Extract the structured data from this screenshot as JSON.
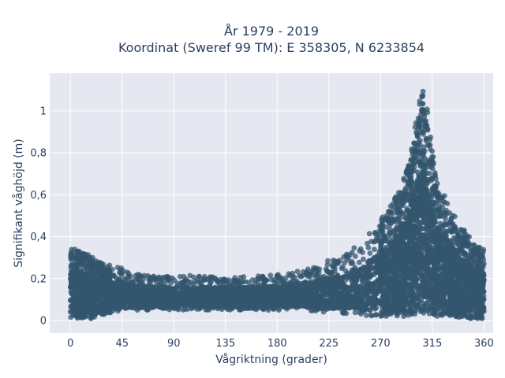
{
  "chart_data": {
    "type": "scatter",
    "title_lines": [
      "År 1979 - 2019",
      "Koordinat (Sweref 99 TM): E 358305, N 6233854"
    ],
    "xlabel": "Vågriktning (grader)",
    "ylabel": "Signifikant våghöjd (m)",
    "xlim": [
      -18,
      368
    ],
    "ylim": [
      -0.06,
      1.18
    ],
    "xticks": [
      0,
      45,
      90,
      135,
      180,
      225,
      270,
      315,
      360
    ],
    "xtick_labels": [
      "0",
      "45",
      "90",
      "135",
      "180",
      "225",
      "270",
      "315",
      "360"
    ],
    "yticks": [
      0,
      0.2,
      0.4,
      0.6,
      0.8,
      1
    ],
    "ytick_labels": [
      "0",
      "0,2",
      "0,4",
      "0,6",
      "0,8",
      "1"
    ],
    "grid": true,
    "marker_color": "#33566e",
    "plot_bg": "#e5e8f1",
    "envelope": {
      "direction": [
        0,
        10,
        20,
        30,
        45,
        60,
        90,
        120,
        150,
        180,
        200,
        220,
        240,
        255,
        270,
        280,
        290,
        297,
        302,
        306,
        310,
        314,
        318,
        322,
        330,
        340,
        350,
        360
      ],
      "max_height": [
        0.35,
        0.33,
        0.3,
        0.27,
        0.25,
        0.22,
        0.21,
        0.21,
        0.21,
        0.22,
        0.24,
        0.28,
        0.32,
        0.38,
        0.48,
        0.56,
        0.66,
        0.82,
        1.0,
        1.12,
        1.05,
        0.86,
        0.72,
        0.62,
        0.54,
        0.45,
        0.38,
        0.33
      ],
      "min_height": [
        0.01,
        0.01,
        0.01,
        0.03,
        0.04,
        0.05,
        0.05,
        0.05,
        0.05,
        0.05,
        0.05,
        0.04,
        0.03,
        0.02,
        0.02,
        0.02,
        0.02,
        0.02,
        0.03,
        0.03,
        0.03,
        0.03,
        0.02,
        0.02,
        0.02,
        0.01,
        0.01,
        0.01
      ]
    }
  }
}
